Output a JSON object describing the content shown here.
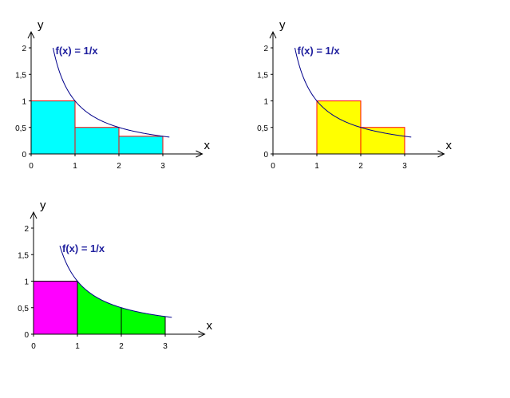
{
  "chart_data": [
    {
      "type": "area",
      "function_label": "f(x) = 1/x",
      "xlabel": "x",
      "ylabel": "y",
      "x_ticks": [
        "0",
        "1",
        "2",
        "3"
      ],
      "y_ticks": [
        "0",
        "0,5",
        "1",
        "1,5",
        "2"
      ],
      "xlim": [
        0,
        3.9
      ],
      "ylim": [
        0,
        2.3
      ],
      "curve": {
        "from": 0.5,
        "to": 3.15
      },
      "colors": {
        "fill": "#00ffff",
        "edge": "#ff0000",
        "curve": "#00008b"
      },
      "regions": [
        {
          "x0": 0,
          "x1": 1,
          "top": "flat",
          "height": 1
        },
        {
          "x0": 1,
          "x1": 2,
          "top": "flat",
          "height": 0.5
        },
        {
          "x0": 2,
          "x1": 3,
          "top": "flat",
          "height": 0.333
        }
      ]
    },
    {
      "type": "area",
      "function_label": "f(x) = 1/x",
      "xlabel": "x",
      "ylabel": "y",
      "x_ticks": [
        "0",
        "1",
        "2",
        "3"
      ],
      "y_ticks": [
        "0",
        "0,5",
        "1",
        "1,5",
        "2"
      ],
      "xlim": [
        0,
        3.9
      ],
      "ylim": [
        0,
        2.3
      ],
      "curve": {
        "from": 0.5,
        "to": 3.15
      },
      "colors": {
        "fill": "#ffff00",
        "edge": "#ff0000",
        "curve": "#00008b"
      },
      "regions": [
        {
          "x0": 1,
          "x1": 2,
          "top": "flat",
          "height": 1
        },
        {
          "x0": 2,
          "x1": 3,
          "top": "flat",
          "height": 0.5
        }
      ]
    },
    {
      "type": "area",
      "function_label": "f(x) = 1/x",
      "xlabel": "x",
      "ylabel": "y",
      "x_ticks": [
        "0",
        "1",
        "2",
        "3"
      ],
      "y_ticks": [
        "0",
        "0,5",
        "1",
        "1,5",
        "2"
      ],
      "xlim": [
        0,
        3.9
      ],
      "ylim": [
        0,
        2.3
      ],
      "curve": {
        "from": 0.6,
        "to": 3.15
      },
      "colors": {
        "fill": "#ff00ff",
        "edge": "#000000",
        "curve": "#00008b"
      },
      "regions": [
        {
          "x0": 0,
          "x1": 1,
          "top": "flat",
          "height": 1,
          "fill": "#ff00ff"
        },
        {
          "x0": 1,
          "x1": 2,
          "top": "curve",
          "fill": "#00ff00"
        },
        {
          "x0": 2,
          "x1": 3,
          "top": "curve",
          "fill": "#00ff00"
        }
      ]
    }
  ]
}
